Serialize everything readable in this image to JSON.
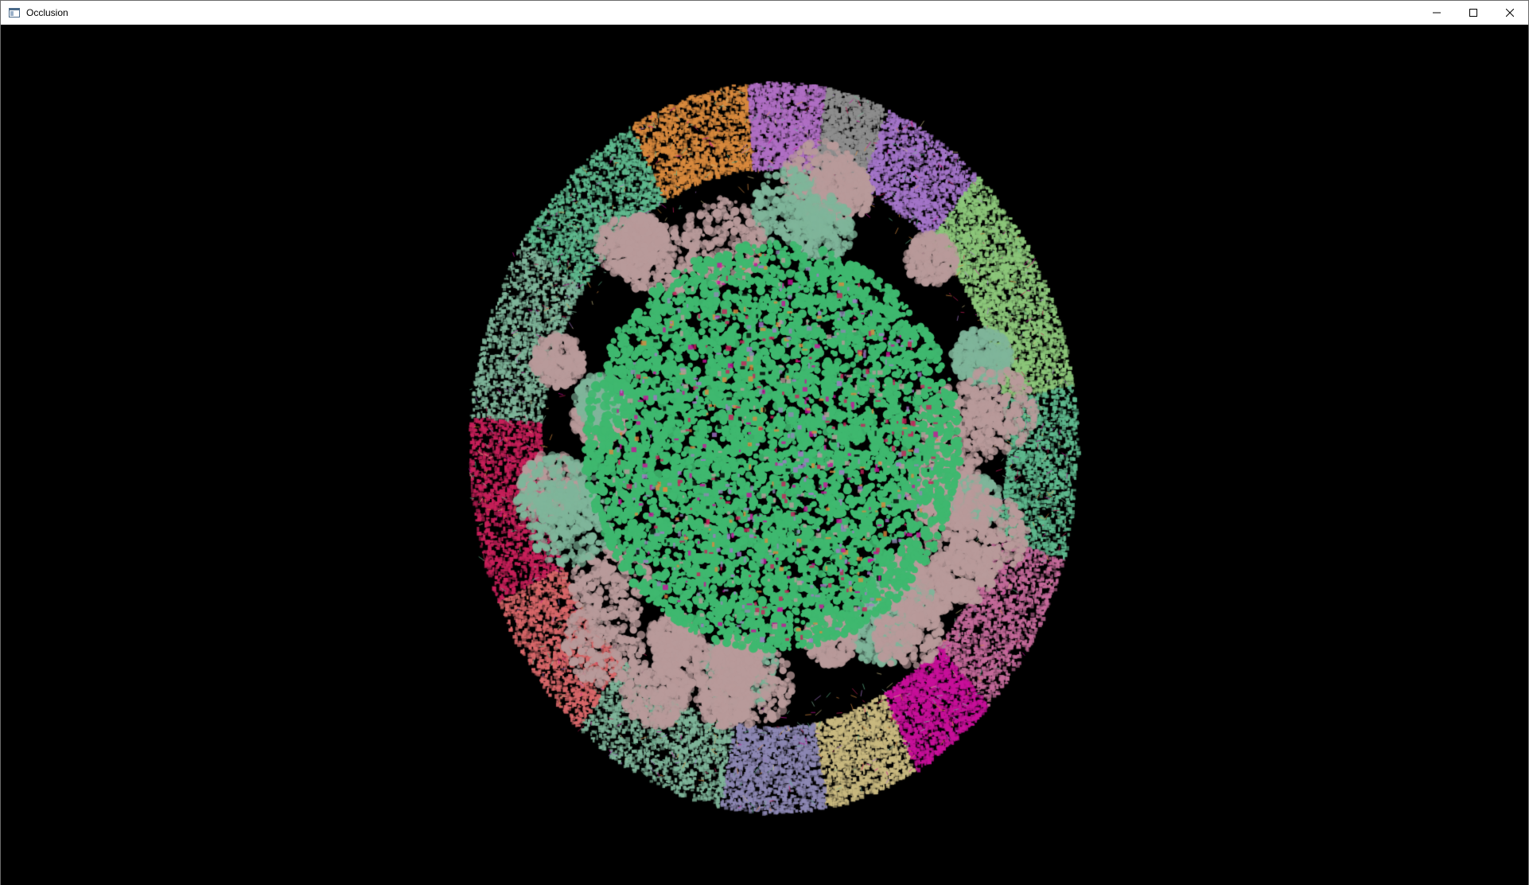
{
  "window": {
    "title": "Occlusion",
    "icon": "app-window-icon",
    "controls": {
      "minimize_icon": "minimize-icon",
      "maximize_icon": "maximize-icon",
      "close_icon": "close-icon"
    }
  },
  "scene": {
    "background": "#000000",
    "palette": {
      "core_green": "#3fb86f",
      "pink_gray": "#b89a9a",
      "teal_gray": "#7fb59a",
      "orange": "#d98a3e",
      "lavender": "#b06fc4",
      "gray": "#8e8e8e",
      "violet": "#a475c9",
      "magenta": "#c8109a",
      "crimson": "#c8205a",
      "rose": "#c46a9a",
      "slate_blue": "#8d88b4",
      "khaki": "#c9b980",
      "salmon": "#d9686a",
      "light_green": "#8cc67a",
      "sea_green": "#5fb98e"
    }
  }
}
